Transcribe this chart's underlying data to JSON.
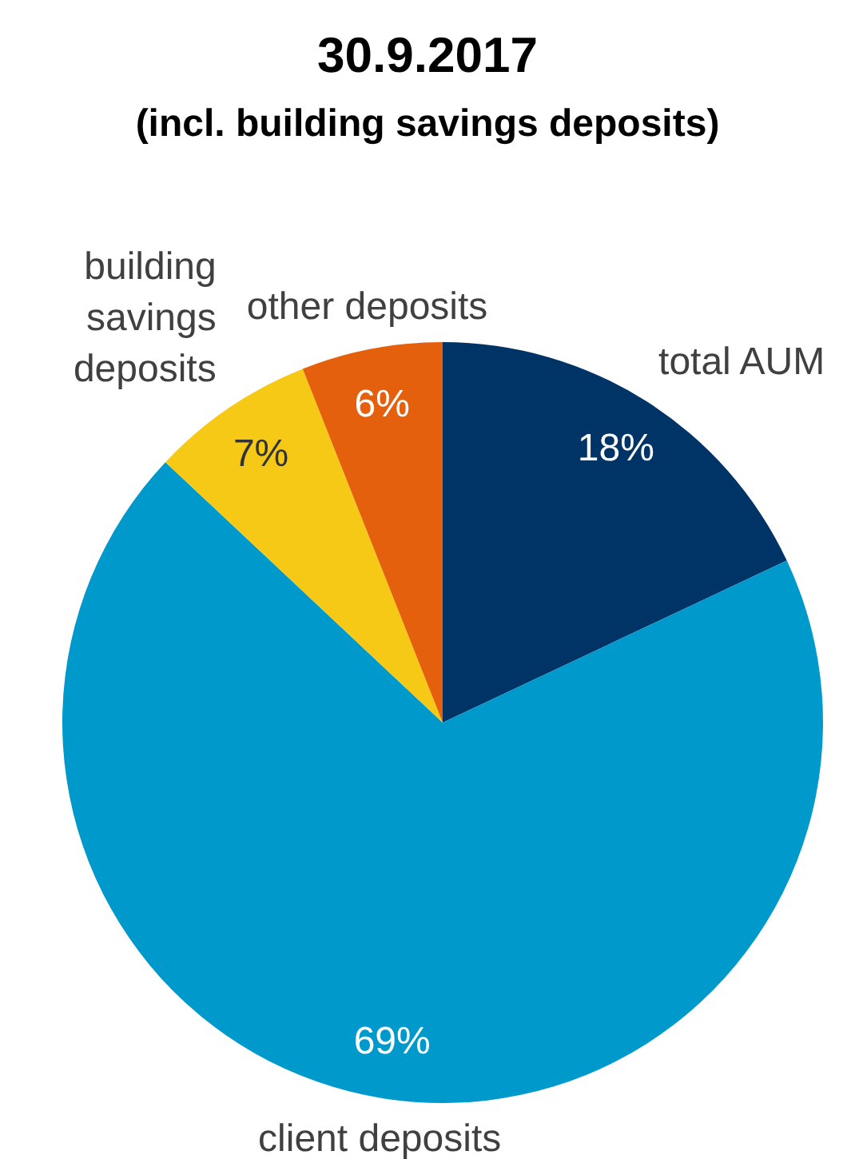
{
  "chart_data": {
    "type": "pie",
    "title": "30.9.2017",
    "subtitle": "(incl. building savings deposits)",
    "categories": [
      "total AUM",
      "client deposits",
      "building savings deposits",
      "other deposits"
    ],
    "values": [
      18,
      69,
      7,
      6
    ],
    "colors": [
      "#003366",
      "#0099cc",
      "#f7c917",
      "#e5600d"
    ],
    "value_labels": [
      "18%",
      "69%",
      "7%",
      "6%"
    ]
  }
}
